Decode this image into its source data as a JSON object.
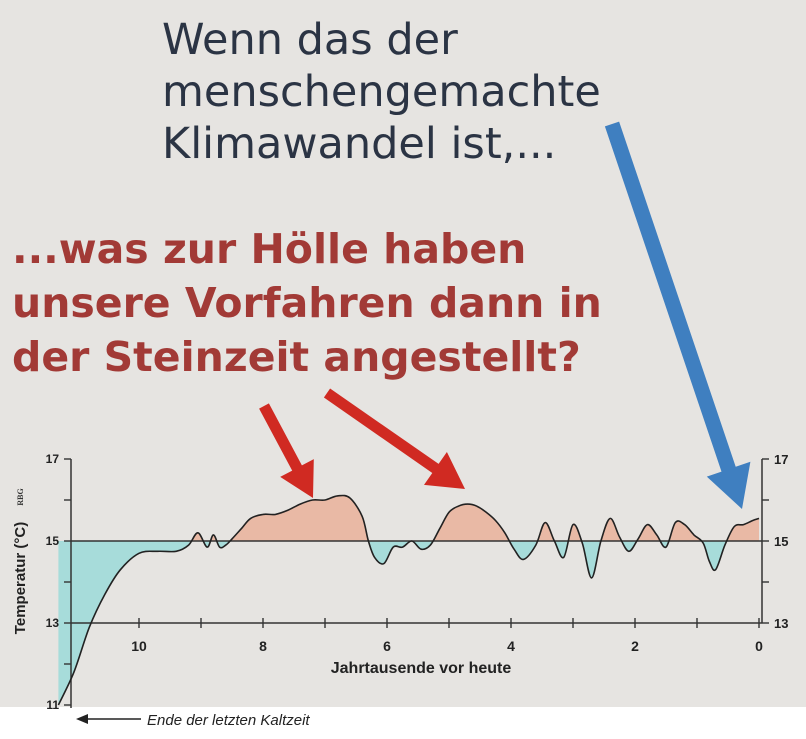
{
  "headline": {
    "line1": "Wenn das der",
    "line2": "menschengemachte",
    "line3": "Klimawandel ist,..."
  },
  "subline": {
    "line1": "...was zur Hölle haben",
    "line2": "unsere Vorfahren dann in",
    "line3": "der Steinzeit angestellt?"
  },
  "chart_data": {
    "type": "line",
    "xlabel": "Jahrtausende vor heute",
    "ylabel": "Temperatur (°C)",
    "ylabel_mark": "RBG",
    "x_ticks": [
      "10",
      "8",
      "6",
      "4",
      "2",
      "0"
    ],
    "y_ticks_left": [
      "17",
      "15",
      "13",
      "11"
    ],
    "y_ticks_right": [
      "17",
      "15",
      "13"
    ],
    "xlim": [
      11.3,
      0
    ],
    "ylim": [
      11,
      17
    ],
    "baseline": 15,
    "annotation": "Ende der letzten Kaltzeit",
    "colors": {
      "line": "#222222",
      "above_fill": "#e9b9a5",
      "below_fill": "#a7dcda",
      "red_arrow": "#d02a22",
      "blue_arrow": "#3f7fc0",
      "headline": "#2b3444",
      "subline": "#a23a36"
    },
    "series": [
      {
        "x": [
          11.3,
          11.05,
          10.8,
          10.55,
          10.3,
          10.0,
          9.7,
          9.4,
          9.2,
          9.05,
          8.9,
          8.8,
          8.7,
          8.6,
          8.5,
          8.35,
          8.2,
          8.0,
          7.8,
          7.6,
          7.4,
          7.2,
          7.0,
          6.8,
          6.6,
          6.4,
          6.3,
          6.2,
          6.05,
          5.9,
          5.75,
          5.6,
          5.45,
          5.3,
          5.15,
          5.0,
          4.85,
          4.7,
          4.55,
          4.4,
          4.25,
          4.1,
          3.95,
          3.8,
          3.6,
          3.45,
          3.3,
          3.15,
          3.0,
          2.85,
          2.7,
          2.55,
          2.4,
          2.25,
          2.1,
          1.95,
          1.8,
          1.65,
          1.5,
          1.35,
          1.2,
          1.05,
          0.9,
          0.8,
          0.7,
          0.55,
          0.4,
          0.25,
          0.1,
          0.0
        ],
        "y": [
          11.0,
          11.8,
          12.9,
          13.7,
          14.3,
          14.7,
          14.75,
          14.75,
          14.9,
          15.2,
          14.85,
          15.15,
          14.85,
          14.9,
          15.05,
          15.3,
          15.55,
          15.65,
          15.65,
          15.75,
          15.9,
          16.0,
          16.0,
          16.1,
          16.05,
          15.6,
          15.0,
          14.6,
          14.45,
          14.85,
          14.85,
          15.0,
          14.8,
          14.9,
          15.3,
          15.7,
          15.85,
          15.9,
          15.85,
          15.7,
          15.5,
          15.2,
          14.8,
          14.55,
          14.9,
          15.45,
          15.0,
          14.6,
          15.4,
          14.95,
          14.1,
          15.0,
          15.55,
          15.1,
          14.75,
          15.05,
          15.4,
          15.15,
          14.85,
          15.45,
          15.4,
          15.15,
          14.95,
          14.5,
          14.3,
          14.9,
          15.35,
          15.4,
          15.5,
          15.55
        ]
      }
    ]
  }
}
